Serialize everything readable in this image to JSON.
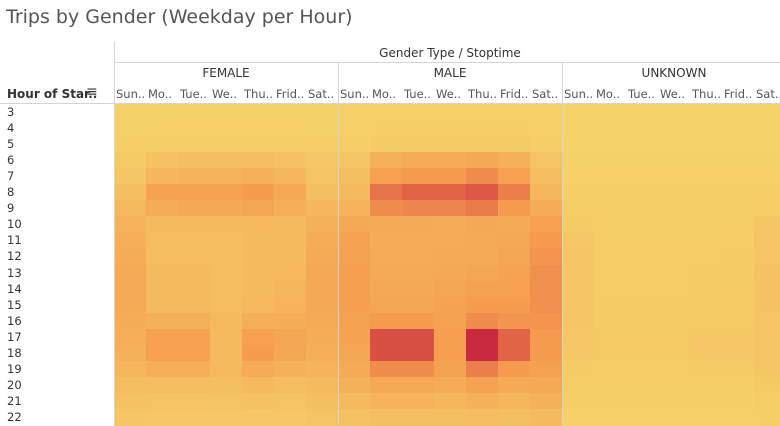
{
  "title": "Trips by Gender (Weekday per Hour)",
  "chart_data": {
    "type": "heatmap",
    "title": "Trips by Gender (Weekday per Hour)",
    "column_header": "Gender Type / Stoptime",
    "row_header": "Hour of Star..",
    "genders": [
      "FEMALE",
      "MALE",
      "UNKNOWN"
    ],
    "days": [
      "Sun..",
      "Mo..",
      "Tue..",
      "We..",
      "Thu..",
      "Frid..",
      "Sat.."
    ],
    "hours": [
      "3",
      "4",
      "5",
      "6",
      "7",
      "8",
      "9",
      "10",
      "11",
      "12",
      "13",
      "14",
      "15",
      "16",
      "17",
      "18",
      "19",
      "20",
      "21",
      "22"
    ],
    "value_scale": [
      0,
      100
    ],
    "colors": {
      "low": "#f5d46a",
      "mid": "#f59a4f",
      "high": "#c2143c"
    },
    "values": {
      "FEMALE": [
        [
          2,
          2,
          2,
          2,
          2,
          2,
          2
        ],
        [
          2,
          3,
          3,
          3,
          3,
          3,
          2
        ],
        [
          4,
          5,
          5,
          5,
          5,
          5,
          4
        ],
        [
          8,
          16,
          18,
          18,
          20,
          16,
          10
        ],
        [
          12,
          25,
          28,
          28,
          30,
          25,
          14
        ],
        [
          18,
          42,
          44,
          44,
          48,
          38,
          18
        ],
        [
          22,
          35,
          38,
          38,
          40,
          32,
          25
        ],
        [
          28,
          22,
          22,
          22,
          24,
          22,
          30
        ],
        [
          32,
          20,
          20,
          20,
          22,
          22,
          34
        ],
        [
          34,
          20,
          20,
          20,
          22,
          22,
          36
        ],
        [
          36,
          22,
          22,
          20,
          22,
          24,
          38
        ],
        [
          36,
          22,
          22,
          20,
          22,
          26,
          38
        ],
        [
          36,
          22,
          22,
          20,
          24,
          28,
          38
        ],
        [
          34,
          30,
          30,
          22,
          32,
          34,
          36
        ],
        [
          32,
          45,
          45,
          22,
          45,
          40,
          34
        ],
        [
          30,
          45,
          45,
          22,
          48,
          40,
          32
        ],
        [
          26,
          32,
          32,
          22,
          35,
          30,
          28
        ],
        [
          20,
          20,
          20,
          18,
          22,
          20,
          22
        ],
        [
          16,
          15,
          15,
          14,
          16,
          15,
          18
        ],
        [
          12,
          10,
          10,
          10,
          10,
          10,
          14
        ]
      ],
      "MALE": [
        [
          3,
          3,
          3,
          3,
          3,
          3,
          3
        ],
        [
          3,
          4,
          4,
          4,
          4,
          4,
          3
        ],
        [
          5,
          8,
          8,
          8,
          8,
          8,
          5
        ],
        [
          12,
          30,
          35,
          35,
          38,
          30,
          14
        ],
        [
          18,
          45,
          50,
          50,
          55,
          45,
          20
        ],
        [
          22,
          65,
          70,
          70,
          75,
          60,
          25
        ],
        [
          28,
          55,
          58,
          58,
          62,
          50,
          35
        ],
        [
          38,
          36,
          36,
          35,
          38,
          36,
          45
        ],
        [
          42,
          35,
          35,
          35,
          36,
          38,
          50
        ],
        [
          44,
          35,
          35,
          36,
          36,
          40,
          52
        ],
        [
          46,
          36,
          36,
          38,
          40,
          42,
          54
        ],
        [
          46,
          38,
          38,
          40,
          44,
          45,
          54
        ],
        [
          46,
          40,
          40,
          42,
          48,
          48,
          54
        ],
        [
          44,
          50,
          50,
          44,
          55,
          52,
          52
        ],
        [
          42,
          78,
          78,
          46,
          92,
          70,
          50
        ],
        [
          40,
          78,
          78,
          46,
          92,
          70,
          48
        ],
        [
          36,
          55,
          55,
          44,
          60,
          50,
          44
        ],
        [
          30,
          38,
          38,
          35,
          42,
          36,
          38
        ],
        [
          22,
          28,
          28,
          26,
          30,
          26,
          30
        ],
        [
          16,
          18,
          18,
          18,
          20,
          18,
          22
        ]
      ],
      "UNKNOWN": [
        [
          1,
          1,
          1,
          1,
          1,
          1,
          1
        ],
        [
          1,
          1,
          1,
          1,
          1,
          1,
          1
        ],
        [
          1,
          1,
          1,
          1,
          1,
          1,
          1
        ],
        [
          2,
          2,
          2,
          2,
          2,
          2,
          2
        ],
        [
          3,
          3,
          3,
          3,
          3,
          3,
          3
        ],
        [
          4,
          4,
          4,
          4,
          4,
          4,
          5
        ],
        [
          5,
          5,
          5,
          5,
          5,
          5,
          7
        ],
        [
          8,
          6,
          6,
          6,
          6,
          6,
          12
        ],
        [
          10,
          6,
          6,
          6,
          6,
          7,
          14
        ],
        [
          11,
          7,
          7,
          7,
          7,
          8,
          15
        ],
        [
          12,
          7,
          7,
          7,
          8,
          8,
          16
        ],
        [
          12,
          7,
          7,
          7,
          8,
          9,
          16
        ],
        [
          12,
          8,
          8,
          8,
          8,
          9,
          16
        ],
        [
          11,
          8,
          8,
          8,
          9,
          9,
          15
        ],
        [
          10,
          9,
          9,
          9,
          10,
          10,
          14
        ],
        [
          10,
          9,
          9,
          9,
          10,
          10,
          13
        ],
        [
          8,
          7,
          7,
          7,
          8,
          8,
          11
        ],
        [
          6,
          5,
          5,
          5,
          6,
          6,
          9
        ],
        [
          4,
          4,
          4,
          4,
          4,
          4,
          6
        ],
        [
          3,
          3,
          3,
          3,
          3,
          3,
          4
        ]
      ]
    }
  }
}
